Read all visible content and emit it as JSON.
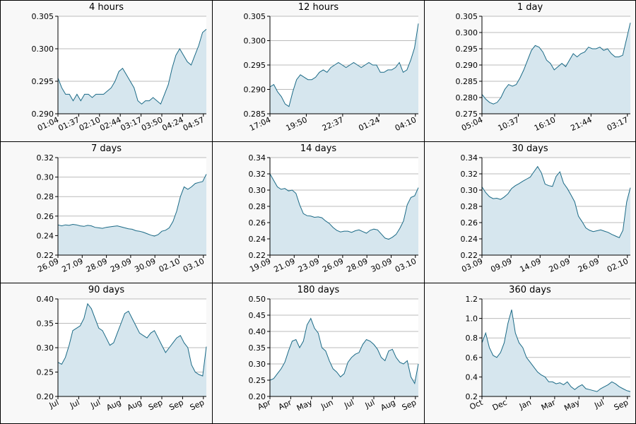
{
  "colors": {
    "line": "#1b6a86",
    "fill": "#d6e6ee",
    "grid": "#bbbbbb",
    "plot_bg": "#ffffff",
    "panel_bg": "#f8f8f8"
  },
  "chart_data": [
    {
      "type": "area",
      "title": "4 hours",
      "ylim": [
        0.29,
        0.305
      ],
      "yticks": [
        "0.290",
        "0.295",
        "0.300",
        "0.305"
      ],
      "xticks": [
        "01:04",
        "01:37",
        "02:10",
        "02:44",
        "03:17",
        "03:50",
        "04:24",
        "04:57"
      ],
      "series": [
        {
          "values": [
            0.2955,
            0.294,
            0.293,
            0.293,
            0.292,
            0.293,
            0.292,
            0.293,
            0.293,
            0.2925,
            0.293,
            0.293,
            0.293,
            0.2935,
            0.294,
            0.295,
            0.2965,
            0.297,
            0.296,
            0.295,
            0.294,
            0.292,
            0.2915,
            0.292,
            0.292,
            0.2925,
            0.292,
            0.2915,
            0.293,
            0.2945,
            0.297,
            0.299,
            0.3,
            0.299,
            0.298,
            0.2975,
            0.299,
            0.3005,
            0.3025,
            0.303
          ]
        }
      ]
    },
    {
      "type": "area",
      "title": "12 hours",
      "ylim": [
        0.285,
        0.305
      ],
      "yticks": [
        "0.285",
        "0.290",
        "0.295",
        "0.300",
        "0.305"
      ],
      "xticks": [
        "17:04",
        "19:50",
        "22:37",
        "01:24",
        "04:10"
      ],
      "series": [
        {
          "values": [
            0.2905,
            0.291,
            0.2895,
            0.2885,
            0.287,
            0.2865,
            0.2895,
            0.292,
            0.293,
            0.2925,
            0.292,
            0.292,
            0.2925,
            0.2935,
            0.294,
            0.2935,
            0.2945,
            0.295,
            0.2955,
            0.295,
            0.2945,
            0.295,
            0.2955,
            0.295,
            0.2945,
            0.295,
            0.2955,
            0.295,
            0.295,
            0.2935,
            0.2935,
            0.294,
            0.294,
            0.2945,
            0.2955,
            0.2935,
            0.294,
            0.296,
            0.2985,
            0.3035
          ]
        }
      ]
    },
    {
      "type": "area",
      "title": "1 day",
      "ylim": [
        0.275,
        0.305
      ],
      "yticks": [
        "0.275",
        "0.280",
        "0.285",
        "0.290",
        "0.295",
        "0.300",
        "0.305"
      ],
      "xticks": [
        "05:04",
        "10:37",
        "16:10",
        "21:44",
        "03:17"
      ],
      "series": [
        {
          "values": [
            0.281,
            0.2795,
            0.2785,
            0.278,
            0.2785,
            0.28,
            0.2825,
            0.284,
            0.2835,
            0.284,
            0.286,
            0.2885,
            0.2915,
            0.2945,
            0.296,
            0.2955,
            0.294,
            0.2915,
            0.2905,
            0.2885,
            0.2895,
            0.2905,
            0.2895,
            0.2915,
            0.2935,
            0.2925,
            0.2935,
            0.294,
            0.2955,
            0.295,
            0.295,
            0.2955,
            0.2945,
            0.295,
            0.2935,
            0.2925,
            0.2925,
            0.293,
            0.298,
            0.303
          ]
        }
      ]
    },
    {
      "type": "area",
      "title": "7 days",
      "ylim": [
        0.22,
        0.32
      ],
      "yticks": [
        "0.22",
        "0.24",
        "0.26",
        "0.28",
        "0.30",
        "0.32"
      ],
      "xticks": [
        "26.09",
        "27.09",
        "28.09",
        "29.09",
        "30.09",
        "02.10",
        "03.10"
      ],
      "series": [
        {
          "values": [
            0.251,
            0.25,
            0.251,
            0.2505,
            0.2515,
            0.251,
            0.25,
            0.2495,
            0.2505,
            0.25,
            0.2485,
            0.248,
            0.2475,
            0.2485,
            0.249,
            0.2495,
            0.25,
            0.249,
            0.248,
            0.247,
            0.2465,
            0.245,
            0.2445,
            0.2435,
            0.242,
            0.2405,
            0.2395,
            0.241,
            0.2445,
            0.2455,
            0.248,
            0.2545,
            0.265,
            0.28,
            0.29,
            0.2875,
            0.29,
            0.2935,
            0.2945,
            0.2955,
            0.303
          ]
        }
      ]
    },
    {
      "type": "area",
      "title": "14 days",
      "ylim": [
        0.22,
        0.34
      ],
      "yticks": [
        "0.22",
        "0.24",
        "0.26",
        "0.28",
        "0.30",
        "0.32",
        "0.34"
      ],
      "xticks": [
        "19.09",
        "21.09",
        "23.09",
        "26.09",
        "28.09",
        "30.09",
        "03.10"
      ],
      "series": [
        {
          "values": [
            0.32,
            0.312,
            0.304,
            0.301,
            0.302,
            0.299,
            0.3,
            0.296,
            0.282,
            0.271,
            0.2685,
            0.268,
            0.2665,
            0.267,
            0.266,
            0.262,
            0.259,
            0.254,
            0.2505,
            0.2485,
            0.2495,
            0.2495,
            0.248,
            0.25,
            0.251,
            0.249,
            0.247,
            0.2505,
            0.252,
            0.251,
            0.246,
            0.241,
            0.2395,
            0.242,
            0.2455,
            0.253,
            0.262,
            0.282,
            0.291,
            0.293,
            0.303
          ]
        }
      ]
    },
    {
      "type": "area",
      "title": "30 days",
      "ylim": [
        0.22,
        0.34
      ],
      "yticks": [
        "0.22",
        "0.24",
        "0.26",
        "0.28",
        "0.30",
        "0.32",
        "0.34"
      ],
      "xticks": [
        "03.09",
        "09.09",
        "14.09",
        "20.09",
        "26.09",
        "02.10"
      ],
      "series": [
        {
          "values": [
            0.304,
            0.297,
            0.292,
            0.2895,
            0.29,
            0.2885,
            0.2915,
            0.2955,
            0.302,
            0.3055,
            0.308,
            0.311,
            0.3135,
            0.316,
            0.3225,
            0.329,
            0.3215,
            0.3075,
            0.3055,
            0.3045,
            0.317,
            0.3225,
            0.3085,
            0.302,
            0.294,
            0.2855,
            0.268,
            0.261,
            0.2535,
            0.2505,
            0.249,
            0.25,
            0.251,
            0.2495,
            0.248,
            0.2455,
            0.2435,
            0.2415,
            0.2505,
            0.2855,
            0.303
          ]
        }
      ]
    },
    {
      "type": "area",
      "title": "90 days",
      "ylim": [
        0.2,
        0.4
      ],
      "yticks": [
        "0.20",
        "0.25",
        "0.30",
        "0.35",
        "0.40"
      ],
      "xticks": [
        "Jul",
        "Jul",
        "Jul",
        "Aug",
        "Aug",
        "Sep",
        "Sep",
        "Sep"
      ],
      "series": [
        {
          "values": [
            0.27,
            0.266,
            0.28,
            0.305,
            0.335,
            0.34,
            0.345,
            0.36,
            0.39,
            0.38,
            0.36,
            0.34,
            0.335,
            0.32,
            0.305,
            0.31,
            0.33,
            0.35,
            0.37,
            0.375,
            0.36,
            0.345,
            0.33,
            0.325,
            0.32,
            0.33,
            0.335,
            0.32,
            0.305,
            0.29,
            0.3,
            0.31,
            0.32,
            0.325,
            0.31,
            0.3,
            0.265,
            0.25,
            0.245,
            0.242,
            0.302
          ]
        }
      ]
    },
    {
      "type": "area",
      "title": "180 days",
      "ylim": [
        0.2,
        0.5
      ],
      "yticks": [
        "0.20",
        "0.25",
        "0.30",
        "0.35",
        "0.40",
        "0.45",
        "0.50"
      ],
      "xticks": [
        "Apr",
        "Apr",
        "May",
        "Jun",
        "Jul",
        "Jul",
        "Aug",
        "Sep"
      ],
      "series": [
        {
          "values": [
            0.25,
            0.255,
            0.27,
            0.285,
            0.305,
            0.34,
            0.37,
            0.375,
            0.35,
            0.37,
            0.42,
            0.44,
            0.41,
            0.395,
            0.35,
            0.34,
            0.31,
            0.285,
            0.275,
            0.26,
            0.27,
            0.305,
            0.32,
            0.33,
            0.335,
            0.36,
            0.375,
            0.37,
            0.36,
            0.345,
            0.32,
            0.31,
            0.34,
            0.345,
            0.32,
            0.305,
            0.3,
            0.31,
            0.26,
            0.24,
            0.3
          ]
        }
      ]
    },
    {
      "type": "area",
      "title": "360 days",
      "ylim": [
        0.2,
        1.2
      ],
      "yticks": [
        "0.2",
        "0.4",
        "0.6",
        "0.8",
        "1.0",
        "1.2"
      ],
      "xticks": [
        "Oct",
        "Dec",
        "Jan",
        "Mar",
        "May",
        "Jul",
        "Sep"
      ],
      "series": [
        {
          "values": [
            0.75,
            0.85,
            0.7,
            0.62,
            0.6,
            0.65,
            0.75,
            0.95,
            1.09,
            0.85,
            0.75,
            0.7,
            0.6,
            0.55,
            0.5,
            0.45,
            0.42,
            0.4,
            0.35,
            0.35,
            0.33,
            0.34,
            0.32,
            0.35,
            0.3,
            0.27,
            0.3,
            0.32,
            0.28,
            0.27,
            0.26,
            0.25,
            0.28,
            0.3,
            0.32,
            0.35,
            0.33,
            0.3,
            0.28,
            0.26,
            0.25
          ]
        }
      ]
    }
  ]
}
